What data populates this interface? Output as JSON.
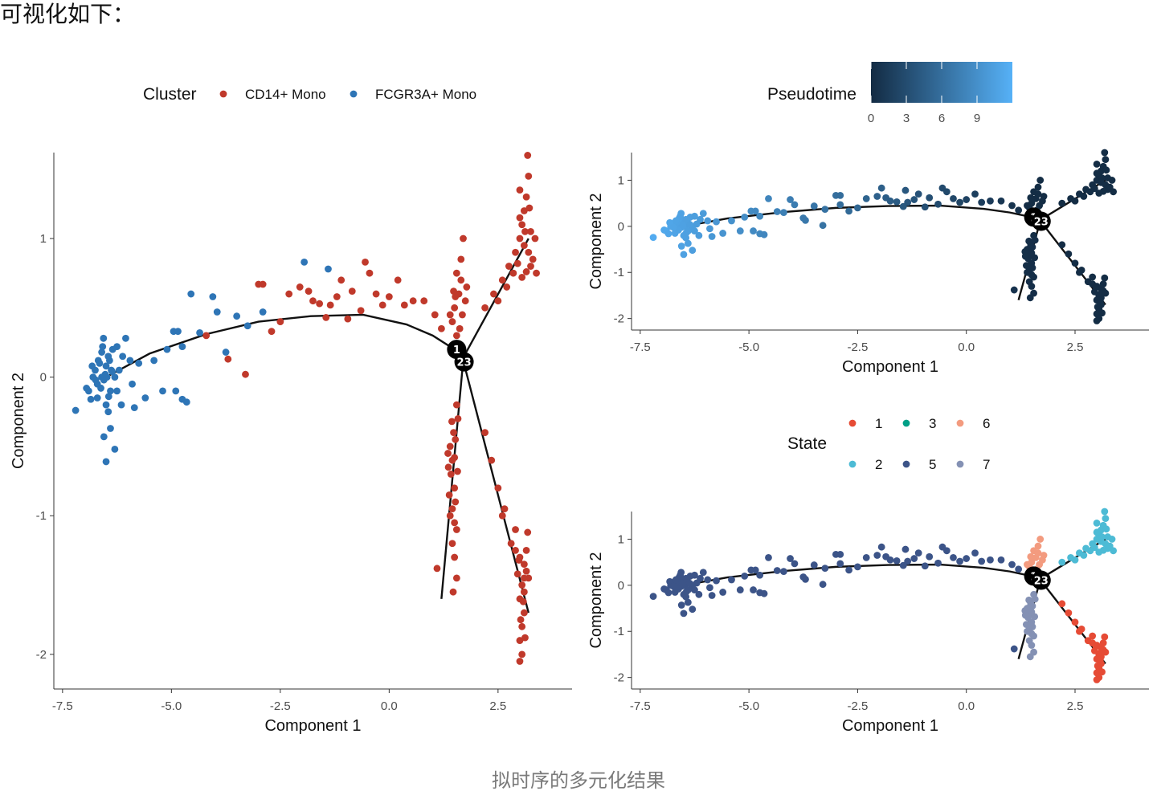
{
  "intro_text": "可视化如下：",
  "caption": "拟时序的多元化结果",
  "chart_data": [
    {
      "type": "scatter",
      "id": "cluster",
      "xlabel": "Component 1",
      "ylabel": "Component 2",
      "xlim": [
        -7.7,
        4.2
      ],
      "ylim": [
        -2.25,
        1.62
      ],
      "x_ticks": [
        -7.5,
        -5.0,
        -2.5,
        0.0,
        2.5
      ],
      "x_tick_labels": [
        "-7.5",
        "-5.0",
        "-2.5",
        "0.0",
        "2.5"
      ],
      "y_ticks": [
        -2,
        -1,
        0,
        1
      ],
      "y_tick_labels": [
        "-2",
        "-1",
        "0",
        "1"
      ],
      "grid": false,
      "legend": {
        "title": "Cluster",
        "placement": "top",
        "entries": [
          {
            "label": "CD14+ Mono",
            "color": "#c0392b"
          },
          {
            "label": "FCGR3A+ Mono",
            "color": "#2e75b6"
          }
        ]
      },
      "trajectory": {
        "main_branch": [
          [
            -6.5,
            0.0
          ],
          [
            -5.5,
            0.17
          ],
          [
            -4.2,
            0.31
          ],
          [
            -3.0,
            0.4
          ],
          [
            -1.8,
            0.44
          ],
          [
            -0.6,
            0.45
          ],
          [
            0.4,
            0.38
          ],
          [
            1.0,
            0.3
          ],
          [
            1.6,
            0.18
          ]
        ],
        "branches": [
          [
            [
              1.7,
              0.14
            ],
            [
              3.2,
              1.0
            ]
          ],
          [
            [
              1.7,
              0.12
            ],
            [
              1.2,
              -1.6
            ]
          ],
          [
            [
              1.7,
              0.12
            ],
            [
              3.2,
              -1.7
            ]
          ]
        ],
        "branch_points": [
          {
            "x": 1.55,
            "y": 0.2,
            "label": "1"
          },
          {
            "x": 1.72,
            "y": 0.11,
            "label": "23"
          }
        ]
      },
      "series": [
        {
          "name": "FCGR3A+ Mono",
          "color": "#2e75b6",
          "points": [
            [
              -6.9,
              -0.1
            ],
            [
              -6.8,
              0.0
            ],
            [
              -6.75,
              0.05
            ],
            [
              -6.7,
              -0.05
            ],
            [
              -6.65,
              0.1
            ],
            [
              -6.6,
              0.0
            ],
            [
              -6.55,
              -0.02
            ],
            [
              -6.5,
              0.08
            ],
            [
              -6.48,
              0.0
            ],
            [
              -6.45,
              0.15
            ],
            [
              -6.4,
              -0.1
            ],
            [
              -6.38,
              0.05
            ],
            [
              -6.35,
              0.2
            ],
            [
              -6.6,
              0.18
            ],
            [
              -6.7,
              -0.15
            ],
            [
              -6.5,
              -0.2
            ],
            [
              -6.45,
              -0.25
            ],
            [
              -6.3,
              0.0
            ],
            [
              -6.25,
              -0.1
            ],
            [
              -6.2,
              0.05
            ],
            [
              -6.82,
              0.08
            ],
            [
              -6.58,
              0.22
            ],
            [
              -6.42,
              0.12
            ],
            [
              -6.62,
              -0.08
            ],
            [
              -6.52,
              0.02
            ],
            [
              -6.68,
              0.12
            ],
            [
              -6.36,
              0.04
            ],
            [
              -6.44,
              -0.14
            ],
            [
              -6.56,
              0.28
            ],
            [
              -6.74,
              -0.02
            ],
            [
              -7.2,
              -0.24
            ],
            [
              -6.55,
              -0.43
            ],
            [
              -6.4,
              -0.37
            ],
            [
              -6.3,
              -0.52
            ],
            [
              -6.5,
              -0.61
            ],
            [
              -6.95,
              -0.08
            ],
            [
              -6.85,
              -0.16
            ],
            [
              -6.05,
              0.28
            ],
            [
              -5.9,
              -0.05
            ],
            [
              -5.85,
              -0.22
            ],
            [
              -5.75,
              0.1
            ],
            [
              -5.6,
              -0.15
            ],
            [
              -5.4,
              0.12
            ],
            [
              -5.2,
              -0.1
            ],
            [
              -5.1,
              0.2
            ],
            [
              -4.95,
              0.33
            ],
            [
              -4.85,
              0.33
            ],
            [
              -4.75,
              0.22
            ],
            [
              -4.55,
              0.6
            ],
            [
              -4.9,
              -0.1
            ],
            [
              -4.75,
              -0.16
            ],
            [
              -4.65,
              -0.18
            ],
            [
              -4.35,
              0.32
            ],
            [
              -4.05,
              0.58
            ],
            [
              -3.95,
              0.47
            ],
            [
              -3.75,
              0.18
            ],
            [
              -3.5,
              0.44
            ],
            [
              -3.25,
              0.37
            ],
            [
              -2.9,
              0.47
            ],
            [
              -1.95,
              0.83
            ],
            [
              -1.4,
              0.78
            ],
            [
              -6.15,
              -0.2
            ],
            [
              -6.12,
              0.15
            ],
            [
              -6.25,
              0.22
            ],
            [
              -5.95,
              0.12
            ]
          ]
        },
        {
          "name": "CD14+ Mono",
          "color": "#c0392b",
          "points": [
            [
              -4.2,
              0.3
            ],
            [
              -3.7,
              0.13
            ],
            [
              -3.3,
              0.02
            ],
            [
              -3.0,
              0.67
            ],
            [
              -2.9,
              0.67
            ],
            [
              -2.7,
              0.33
            ],
            [
              -2.5,
              0.4
            ],
            [
              -2.3,
              0.6
            ],
            [
              -2.05,
              0.65
            ],
            [
              -1.85,
              0.62
            ],
            [
              -1.75,
              0.55
            ],
            [
              -1.6,
              0.53
            ],
            [
              -1.45,
              0.43
            ],
            [
              -1.35,
              0.52
            ],
            [
              -1.2,
              0.58
            ],
            [
              -1.1,
              0.7
            ],
            [
              -0.95,
              0.42
            ],
            [
              -0.85,
              0.62
            ],
            [
              -0.65,
              0.48
            ],
            [
              -0.55,
              0.83
            ],
            [
              -0.45,
              0.75
            ],
            [
              -0.3,
              0.6
            ],
            [
              -0.15,
              0.52
            ],
            [
              0.0,
              0.58
            ],
            [
              0.2,
              0.7
            ],
            [
              0.35,
              0.52
            ],
            [
              0.55,
              0.55
            ],
            [
              0.8,
              0.55
            ],
            [
              1.05,
              0.45
            ],
            [
              1.2,
              0.35
            ],
            [
              1.4,
              0.45
            ],
            [
              1.55,
              0.75
            ],
            [
              1.65,
              0.85
            ],
            [
              1.7,
              1.0
            ],
            [
              1.6,
              0.6
            ],
            [
              1.5,
              0.5
            ],
            [
              1.62,
              0.35
            ],
            [
              1.75,
              0.55
            ],
            [
              1.55,
              0.3
            ],
            [
              1.45,
              0.4
            ],
            [
              1.65,
              0.7
            ],
            [
              1.78,
              0.65
            ],
            [
              1.52,
              0.58
            ],
            [
              1.48,
              0.62
            ],
            [
              1.68,
              0.45
            ],
            [
              1.55,
              -0.2
            ],
            [
              1.58,
              -0.3
            ],
            [
              1.52,
              -0.45
            ],
            [
              1.4,
              -0.5
            ],
            [
              1.45,
              -0.6
            ],
            [
              1.35,
              -0.55
            ],
            [
              1.42,
              -0.7
            ],
            [
              1.5,
              -0.8
            ],
            [
              1.38,
              -0.85
            ],
            [
              1.45,
              -0.95
            ],
            [
              1.5,
              -1.05
            ],
            [
              1.55,
              -1.1
            ],
            [
              1.45,
              -1.2
            ],
            [
              1.5,
              -1.3
            ],
            [
              1.55,
              -1.45
            ],
            [
              1.47,
              -1.55
            ],
            [
              1.1,
              -1.38
            ],
            [
              1.48,
              -0.4
            ],
            [
              1.36,
              -0.65
            ],
            [
              1.52,
              -0.9
            ],
            [
              1.4,
              -1.0
            ],
            [
              1.57,
              -0.68
            ],
            [
              1.44,
              -0.32
            ],
            [
              1.5,
              -0.58
            ],
            [
              2.2,
              0.5
            ],
            [
              2.4,
              0.6
            ],
            [
              2.6,
              0.7
            ],
            [
              2.75,
              0.8
            ],
            [
              2.9,
              0.9
            ],
            [
              3.0,
              1.0
            ],
            [
              3.05,
              1.1
            ],
            [
              3.1,
              1.2
            ],
            [
              3.15,
              1.3
            ],
            [
              3.0,
              1.35
            ],
            [
              3.1,
              0.95
            ],
            [
              3.2,
              0.9
            ],
            [
              3.25,
              1.05
            ],
            [
              3.35,
              1.0
            ],
            [
              3.2,
              1.45
            ],
            [
              3.25,
              0.8
            ],
            [
              2.95,
              0.82
            ],
            [
              3.05,
              0.72
            ],
            [
              3.15,
              0.76
            ],
            [
              3.3,
              0.85
            ],
            [
              3.0,
              1.15
            ],
            [
              3.12,
              1.05
            ],
            [
              3.22,
              1.22
            ],
            [
              2.85,
              0.75
            ],
            [
              2.5,
              0.55
            ],
            [
              3.38,
              0.75
            ],
            [
              3.18,
              1.6
            ],
            [
              2.7,
              0.65
            ],
            [
              2.2,
              -0.4
            ],
            [
              2.35,
              -0.6
            ],
            [
              2.5,
              -0.8
            ],
            [
              2.6,
              -1.0
            ],
            [
              2.65,
              -0.95
            ],
            [
              2.8,
              -1.2
            ],
            [
              2.9,
              -1.25
            ],
            [
              3.0,
              -1.3
            ],
            [
              3.1,
              -1.35
            ],
            [
              3.15,
              -1.4
            ],
            [
              3.05,
              -1.5
            ],
            [
              3.1,
              -1.55
            ],
            [
              3.0,
              -1.6
            ],
            [
              3.1,
              -1.7
            ],
            [
              3.05,
              -1.8
            ],
            [
              3.0,
              -1.9
            ],
            [
              3.05,
              -2.0
            ],
            [
              3.0,
              -2.05
            ],
            [
              3.15,
              -1.25
            ],
            [
              3.2,
              -1.45
            ],
            [
              2.95,
              -1.42
            ],
            [
              3.08,
              -1.62
            ],
            [
              3.12,
              -1.88
            ],
            [
              2.98,
              -1.32
            ],
            [
              3.18,
              -1.12
            ],
            [
              2.9,
              -1.1
            ],
            [
              3.02,
              -1.75
            ],
            [
              3.1,
              -1.45
            ]
          ]
        }
      ]
    },
    {
      "type": "scatter",
      "id": "pseudotime",
      "xlabel": "Component 1",
      "ylabel": "Component 2",
      "xlim": [
        -7.7,
        4.2
      ],
      "ylim": [
        -2.25,
        1.6
      ],
      "x_ticks": [
        -7.5,
        -5.0,
        -2.5,
        0.0,
        2.5
      ],
      "x_tick_labels": [
        "-7.5",
        "-5.0",
        "-2.5",
        "0.0",
        "2.5"
      ],
      "y_ticks": [
        -2,
        -1,
        0,
        1
      ],
      "y_tick_labels": [
        "-2",
        "-1",
        "0",
        "1"
      ],
      "grid": false,
      "color_scale": {
        "title": "Pseudotime",
        "placement": "top",
        "min": 0,
        "max": 12,
        "low_color": "#132b43",
        "high_color": "#56b1f7",
        "ticks": [
          0,
          3,
          6,
          9
        ],
        "tick_labels": [
          "0",
          "3",
          "6",
          "9"
        ]
      },
      "trajectory_ref": "cluster",
      "note_points": "same cell embedding as panel 1; color encodes pseudotime"
    },
    {
      "type": "scatter",
      "id": "state",
      "xlabel": "Component 1",
      "ylabel": "Component 2",
      "xlim": [
        -7.7,
        4.2
      ],
      "ylim": [
        -2.25,
        1.6
      ],
      "x_ticks": [
        -7.5,
        -5.0,
        -2.5,
        0.0,
        2.5
      ],
      "x_tick_labels": [
        "-7.5",
        "-5.0",
        "-2.5",
        "0.0",
        "2.5"
      ],
      "y_ticks": [
        -2,
        -1,
        0,
        1
      ],
      "y_tick_labels": [
        "-2",
        "-1",
        "0",
        "1"
      ],
      "grid": false,
      "legend": {
        "title": "State",
        "placement": "top",
        "entries": [
          {
            "label": "1",
            "color": "#e64b35"
          },
          {
            "label": "3",
            "color": "#00a087"
          },
          {
            "label": "6",
            "color": "#f39b7f"
          },
          {
            "label": "2",
            "color": "#4dbbd5"
          },
          {
            "label": "5",
            "color": "#3c5488"
          },
          {
            "label": "7",
            "color": "#8491b4"
          }
        ]
      },
      "trajectory_ref": "cluster"
    }
  ]
}
